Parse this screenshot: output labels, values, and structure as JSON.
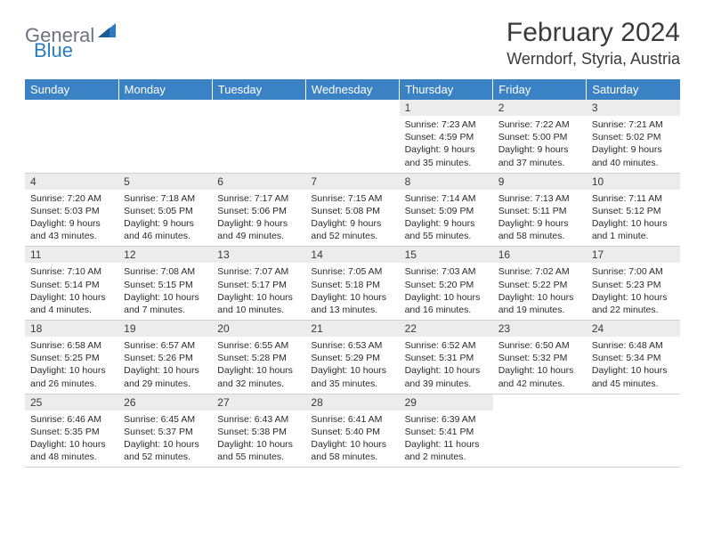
{
  "logo": {
    "part1": "General",
    "part2": "Blue"
  },
  "title": "February 2024",
  "location": "Werndorf, Styria, Austria",
  "colors": {
    "header_bg": "#3b82c4",
    "header_text": "#ffffff",
    "daynum_bg": "#ececec",
    "text": "#3a3a3a",
    "logo_gray": "#6b7280",
    "logo_blue": "#2b7bbf"
  },
  "weekdays": [
    "Sunday",
    "Monday",
    "Tuesday",
    "Wednesday",
    "Thursday",
    "Friday",
    "Saturday"
  ],
  "weeks": [
    [
      {
        "n": "",
        "sunrise": "",
        "sunset": "",
        "daylight": ""
      },
      {
        "n": "",
        "sunrise": "",
        "sunset": "",
        "daylight": ""
      },
      {
        "n": "",
        "sunrise": "",
        "sunset": "",
        "daylight": ""
      },
      {
        "n": "",
        "sunrise": "",
        "sunset": "",
        "daylight": ""
      },
      {
        "n": "1",
        "sunrise": "Sunrise: 7:23 AM",
        "sunset": "Sunset: 4:59 PM",
        "daylight": "Daylight: 9 hours and 35 minutes."
      },
      {
        "n": "2",
        "sunrise": "Sunrise: 7:22 AM",
        "sunset": "Sunset: 5:00 PM",
        "daylight": "Daylight: 9 hours and 37 minutes."
      },
      {
        "n": "3",
        "sunrise": "Sunrise: 7:21 AM",
        "sunset": "Sunset: 5:02 PM",
        "daylight": "Daylight: 9 hours and 40 minutes."
      }
    ],
    [
      {
        "n": "4",
        "sunrise": "Sunrise: 7:20 AM",
        "sunset": "Sunset: 5:03 PM",
        "daylight": "Daylight: 9 hours and 43 minutes."
      },
      {
        "n": "5",
        "sunrise": "Sunrise: 7:18 AM",
        "sunset": "Sunset: 5:05 PM",
        "daylight": "Daylight: 9 hours and 46 minutes."
      },
      {
        "n": "6",
        "sunrise": "Sunrise: 7:17 AM",
        "sunset": "Sunset: 5:06 PM",
        "daylight": "Daylight: 9 hours and 49 minutes."
      },
      {
        "n": "7",
        "sunrise": "Sunrise: 7:15 AM",
        "sunset": "Sunset: 5:08 PM",
        "daylight": "Daylight: 9 hours and 52 minutes."
      },
      {
        "n": "8",
        "sunrise": "Sunrise: 7:14 AM",
        "sunset": "Sunset: 5:09 PM",
        "daylight": "Daylight: 9 hours and 55 minutes."
      },
      {
        "n": "9",
        "sunrise": "Sunrise: 7:13 AM",
        "sunset": "Sunset: 5:11 PM",
        "daylight": "Daylight: 9 hours and 58 minutes."
      },
      {
        "n": "10",
        "sunrise": "Sunrise: 7:11 AM",
        "sunset": "Sunset: 5:12 PM",
        "daylight": "Daylight: 10 hours and 1 minute."
      }
    ],
    [
      {
        "n": "11",
        "sunrise": "Sunrise: 7:10 AM",
        "sunset": "Sunset: 5:14 PM",
        "daylight": "Daylight: 10 hours and 4 minutes."
      },
      {
        "n": "12",
        "sunrise": "Sunrise: 7:08 AM",
        "sunset": "Sunset: 5:15 PM",
        "daylight": "Daylight: 10 hours and 7 minutes."
      },
      {
        "n": "13",
        "sunrise": "Sunrise: 7:07 AM",
        "sunset": "Sunset: 5:17 PM",
        "daylight": "Daylight: 10 hours and 10 minutes."
      },
      {
        "n": "14",
        "sunrise": "Sunrise: 7:05 AM",
        "sunset": "Sunset: 5:18 PM",
        "daylight": "Daylight: 10 hours and 13 minutes."
      },
      {
        "n": "15",
        "sunrise": "Sunrise: 7:03 AM",
        "sunset": "Sunset: 5:20 PM",
        "daylight": "Daylight: 10 hours and 16 minutes."
      },
      {
        "n": "16",
        "sunrise": "Sunrise: 7:02 AM",
        "sunset": "Sunset: 5:22 PM",
        "daylight": "Daylight: 10 hours and 19 minutes."
      },
      {
        "n": "17",
        "sunrise": "Sunrise: 7:00 AM",
        "sunset": "Sunset: 5:23 PM",
        "daylight": "Daylight: 10 hours and 22 minutes."
      }
    ],
    [
      {
        "n": "18",
        "sunrise": "Sunrise: 6:58 AM",
        "sunset": "Sunset: 5:25 PM",
        "daylight": "Daylight: 10 hours and 26 minutes."
      },
      {
        "n": "19",
        "sunrise": "Sunrise: 6:57 AM",
        "sunset": "Sunset: 5:26 PM",
        "daylight": "Daylight: 10 hours and 29 minutes."
      },
      {
        "n": "20",
        "sunrise": "Sunrise: 6:55 AM",
        "sunset": "Sunset: 5:28 PM",
        "daylight": "Daylight: 10 hours and 32 minutes."
      },
      {
        "n": "21",
        "sunrise": "Sunrise: 6:53 AM",
        "sunset": "Sunset: 5:29 PM",
        "daylight": "Daylight: 10 hours and 35 minutes."
      },
      {
        "n": "22",
        "sunrise": "Sunrise: 6:52 AM",
        "sunset": "Sunset: 5:31 PM",
        "daylight": "Daylight: 10 hours and 39 minutes."
      },
      {
        "n": "23",
        "sunrise": "Sunrise: 6:50 AM",
        "sunset": "Sunset: 5:32 PM",
        "daylight": "Daylight: 10 hours and 42 minutes."
      },
      {
        "n": "24",
        "sunrise": "Sunrise: 6:48 AM",
        "sunset": "Sunset: 5:34 PM",
        "daylight": "Daylight: 10 hours and 45 minutes."
      }
    ],
    [
      {
        "n": "25",
        "sunrise": "Sunrise: 6:46 AM",
        "sunset": "Sunset: 5:35 PM",
        "daylight": "Daylight: 10 hours and 48 minutes."
      },
      {
        "n": "26",
        "sunrise": "Sunrise: 6:45 AM",
        "sunset": "Sunset: 5:37 PM",
        "daylight": "Daylight: 10 hours and 52 minutes."
      },
      {
        "n": "27",
        "sunrise": "Sunrise: 6:43 AM",
        "sunset": "Sunset: 5:38 PM",
        "daylight": "Daylight: 10 hours and 55 minutes."
      },
      {
        "n": "28",
        "sunrise": "Sunrise: 6:41 AM",
        "sunset": "Sunset: 5:40 PM",
        "daylight": "Daylight: 10 hours and 58 minutes."
      },
      {
        "n": "29",
        "sunrise": "Sunrise: 6:39 AM",
        "sunset": "Sunset: 5:41 PM",
        "daylight": "Daylight: 11 hours and 2 minutes."
      },
      {
        "n": "",
        "sunrise": "",
        "sunset": "",
        "daylight": ""
      },
      {
        "n": "",
        "sunrise": "",
        "sunset": "",
        "daylight": ""
      }
    ]
  ]
}
